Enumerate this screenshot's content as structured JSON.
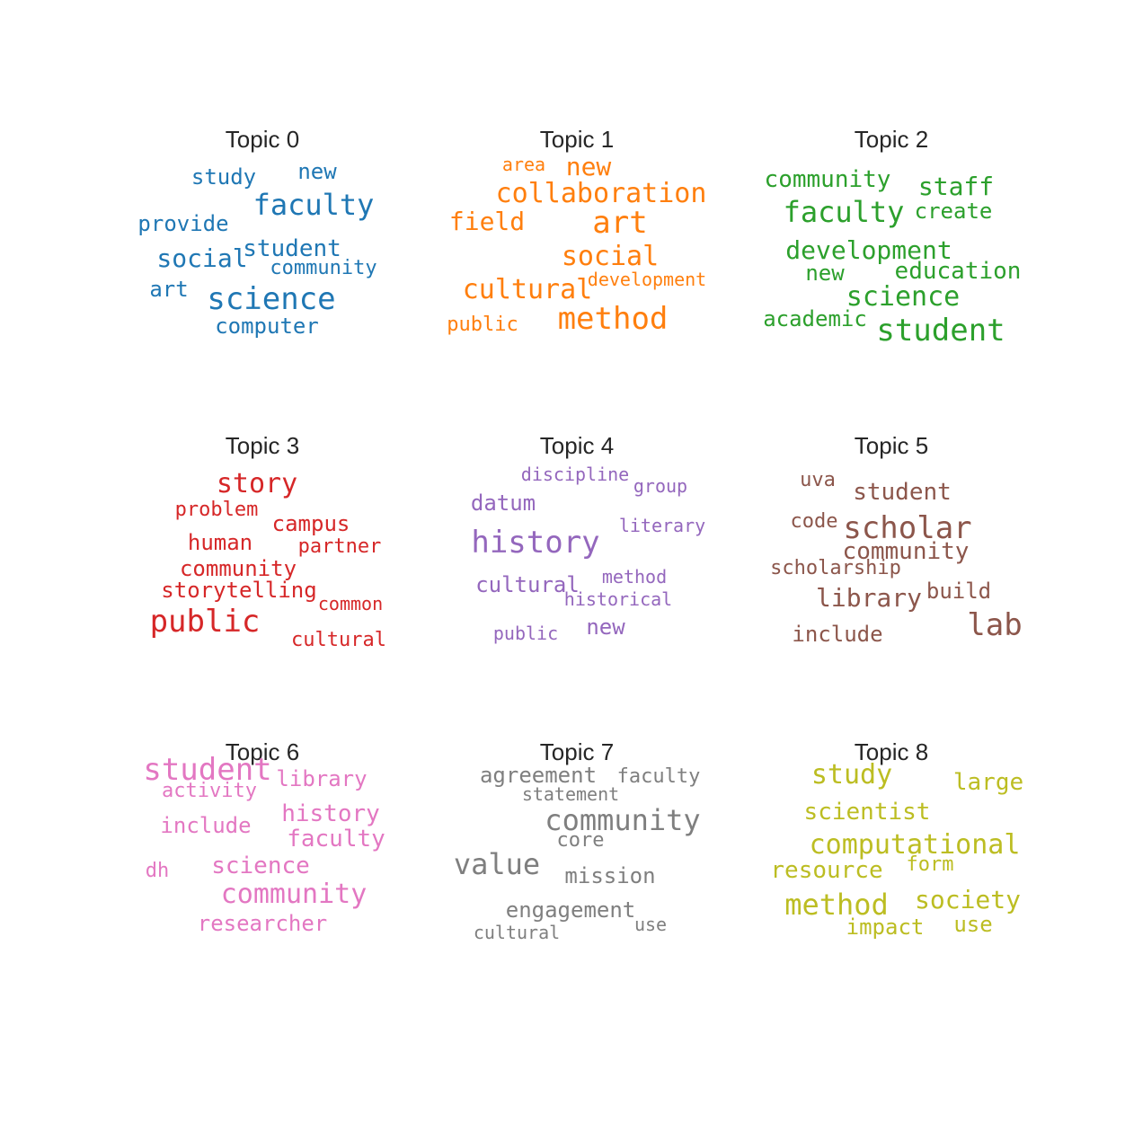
{
  "chart_data": {
    "type": "wordcloud",
    "panels": [
      {
        "title": "Topic 0",
        "color": "#1f77b4",
        "words": [
          "study",
          "new",
          "faculty",
          "provide",
          "social",
          "student",
          "community",
          "art",
          "science",
          "computer"
        ]
      },
      {
        "title": "Topic 1",
        "color": "#ff7f0e",
        "words": [
          "area",
          "new",
          "collaboration",
          "field",
          "art",
          "social",
          "cultural",
          "development",
          "public",
          "method"
        ]
      },
      {
        "title": "Topic 2",
        "color": "#2ca02c",
        "words": [
          "community",
          "staff",
          "faculty",
          "create",
          "development",
          "new",
          "education",
          "science",
          "academic",
          "student"
        ]
      },
      {
        "title": "Topic 3",
        "color": "#d62728",
        "words": [
          "story",
          "problem",
          "campus",
          "human",
          "partner",
          "community",
          "storytelling",
          "common",
          "public",
          "cultural"
        ]
      },
      {
        "title": "Topic 4",
        "color": "#9467bd",
        "words": [
          "discipline",
          "group",
          "datum",
          "literary",
          "history",
          "method",
          "cultural",
          "historical",
          "public",
          "new"
        ]
      },
      {
        "title": "Topic 5",
        "color": "#8c564b",
        "words": [
          "uva",
          "student",
          "code",
          "scholar",
          "community",
          "scholarship",
          "library",
          "build",
          "include",
          "lab"
        ]
      },
      {
        "title": "Topic 6",
        "color": "#e377c2",
        "words": [
          "student",
          "library",
          "activity",
          "history",
          "include",
          "faculty",
          "dh",
          "science",
          "community",
          "researcher"
        ]
      },
      {
        "title": "Topic 7",
        "color": "#7f7f7f",
        "words": [
          "agreement",
          "faculty",
          "statement",
          "community",
          "core",
          "value",
          "mission",
          "engagement",
          "use",
          "cultural"
        ]
      },
      {
        "title": "Topic 8",
        "color": "#bcbd22",
        "words": [
          "study",
          "large",
          "scientist",
          "computational",
          "resource",
          "form",
          "method",
          "society",
          "impact",
          "use"
        ]
      }
    ]
  }
}
